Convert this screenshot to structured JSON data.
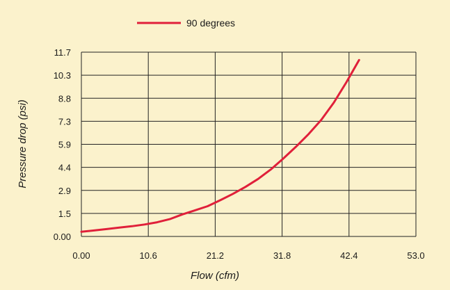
{
  "chart_data": {
    "type": "line",
    "xlabel": "Flow (cfm)",
    "ylabel": "Pressure drop (psi)",
    "xlim": [
      0,
      53.0
    ],
    "ylim": [
      0,
      11.7
    ],
    "x_ticks": [
      "0.00",
      "10.6",
      "21.2",
      "31.8",
      "42.4",
      "53.0"
    ],
    "y_ticks": [
      "0.00",
      "1.5",
      "2.9",
      "4.4",
      "5.9",
      "7.3",
      "8.8",
      "10.3",
      "11.7"
    ],
    "grid": true,
    "legend_position": "top",
    "series": [
      {
        "name": "90 degrees",
        "color": "#e0203a",
        "x": [
          0.0,
          2.0,
          4.0,
          6.0,
          8.0,
          10.0,
          12.0,
          14.0,
          16.0,
          18.0,
          20.0,
          22.0,
          24.0,
          26.0,
          28.0,
          30.0,
          32.0,
          34.0,
          36.0,
          38.0,
          40.0,
          42.0,
          44.0
        ],
        "y": [
          0.3,
          0.38,
          0.47,
          0.56,
          0.65,
          0.76,
          0.9,
          1.1,
          1.4,
          1.66,
          1.92,
          2.3,
          2.7,
          3.15,
          3.65,
          4.25,
          4.95,
          5.7,
          6.5,
          7.4,
          8.5,
          9.8,
          11.2
        ]
      }
    ]
  }
}
